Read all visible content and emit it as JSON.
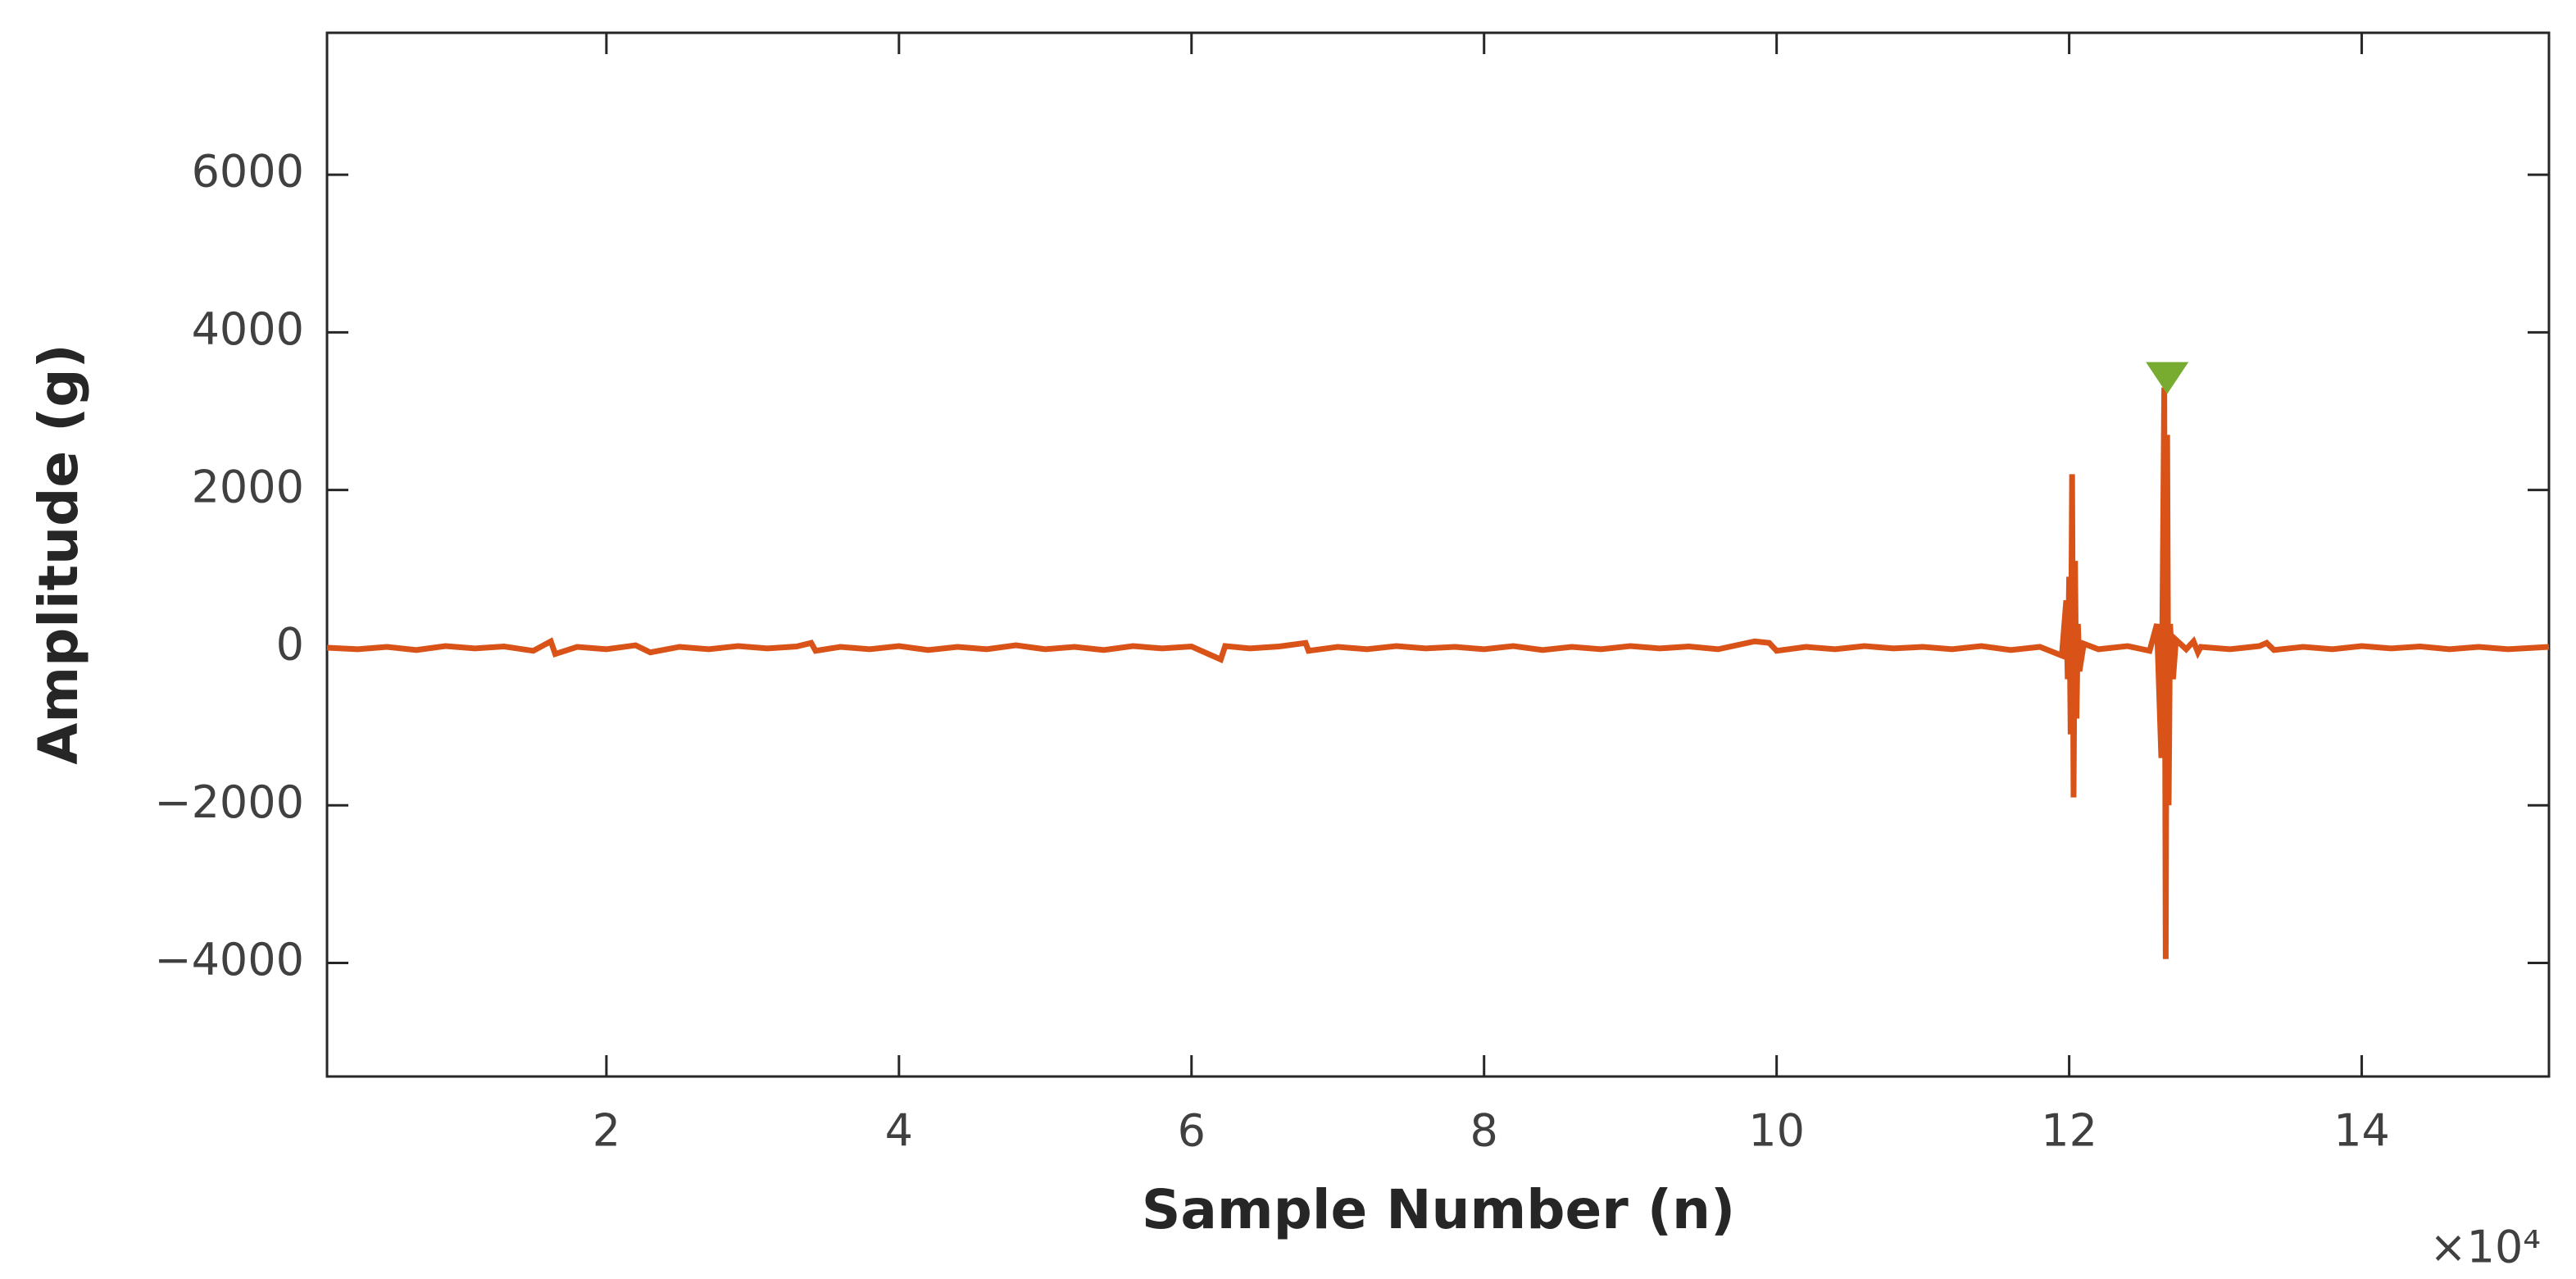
{
  "chart_data": {
    "type": "line",
    "xlabel": "Sample Number (n)",
    "ylabel": "Amplitude (g)",
    "x_exponent_label": "×10⁴",
    "xlim": [
      900,
      152800
    ],
    "xticks": [
      {
        "value": 20000,
        "label": "2"
      },
      {
        "value": 40000,
        "label": "4"
      },
      {
        "value": 60000,
        "label": "6"
      },
      {
        "value": 80000,
        "label": "8"
      },
      {
        "value": 100000,
        "label": "10"
      },
      {
        "value": 120000,
        "label": "12"
      },
      {
        "value": 140000,
        "label": "14"
      }
    ],
    "ylim": [
      -5440,
      7800
    ],
    "yticks": [
      {
        "value": -4000,
        "label": "−4000"
      },
      {
        "value": -2000,
        "label": "−2000"
      },
      0,
      2000,
      4000,
      6000
    ],
    "grid": false,
    "series": [
      {
        "color": "#d95319",
        "x": [
          900,
          3000,
          5000,
          7000,
          9000,
          11000,
          13000,
          15000,
          16200,
          16500,
          18000,
          20000,
          22000,
          23000,
          25000,
          27000,
          29000,
          31000,
          33000,
          34000,
          34300,
          36000,
          38000,
          40000,
          42000,
          44000,
          46000,
          48000,
          50000,
          52000,
          54000,
          56000,
          58000,
          60000,
          62000,
          62300,
          64000,
          66000,
          67800,
          68000,
          70000,
          72000,
          74000,
          76000,
          78000,
          80000,
          82000,
          84000,
          86000,
          88000,
          90000,
          92000,
          94000,
          96000,
          98500,
          99500,
          100000,
          102000,
          104000,
          106000,
          108000,
          110000,
          112000,
          114000,
          116000,
          118000,
          119500,
          119800,
          119900,
          120000,
          120100,
          120200,
          120300,
          120400,
          120500,
          120600,
          120700,
          121000,
          122000,
          124000,
          125500,
          126000,
          126300,
          126500,
          126600,
          126700,
          126800,
          126900,
          127100,
          127300,
          128000,
          128500,
          128800,
          129000,
          131000,
          133000,
          133500,
          134000,
          136000,
          138000,
          140000,
          142000,
          144000,
          146000,
          148000,
          150000,
          152800
        ],
        "values": [
          0,
          -20,
          10,
          -30,
          20,
          -10,
          15,
          -40,
          80,
          -80,
          10,
          -20,
          30,
          -60,
          10,
          -20,
          20,
          -10,
          15,
          60,
          -40,
          10,
          -20,
          20,
          -30,
          10,
          -20,
          30,
          -20,
          10,
          -30,
          20,
          -10,
          15,
          -150,
          20,
          -10,
          15,
          60,
          -40,
          10,
          -20,
          20,
          -10,
          10,
          -20,
          20,
          -30,
          10,
          -20,
          20,
          -10,
          15,
          -20,
          80,
          60,
          -40,
          10,
          -20,
          20,
          -10,
          10,
          -20,
          20,
          -30,
          10,
          -100,
          600,
          -400,
          900,
          -1100,
          2200,
          -1900,
          1100,
          -900,
          300,
          -300,
          50,
          -20,
          20,
          -40,
          300,
          -1400,
          3300,
          -3950,
          2700,
          -2000,
          300,
          -400,
          100,
          -20,
          80,
          -60,
          10,
          -20,
          20,
          60,
          -30,
          10,
          -20,
          20,
          -10,
          15,
          -20,
          10,
          -20,
          10
        ]
      },
      {
        "color": "#77ac30",
        "marker": "triangle-down",
        "x": [
          126700
        ],
        "values": [
          3420
        ]
      }
    ]
  }
}
